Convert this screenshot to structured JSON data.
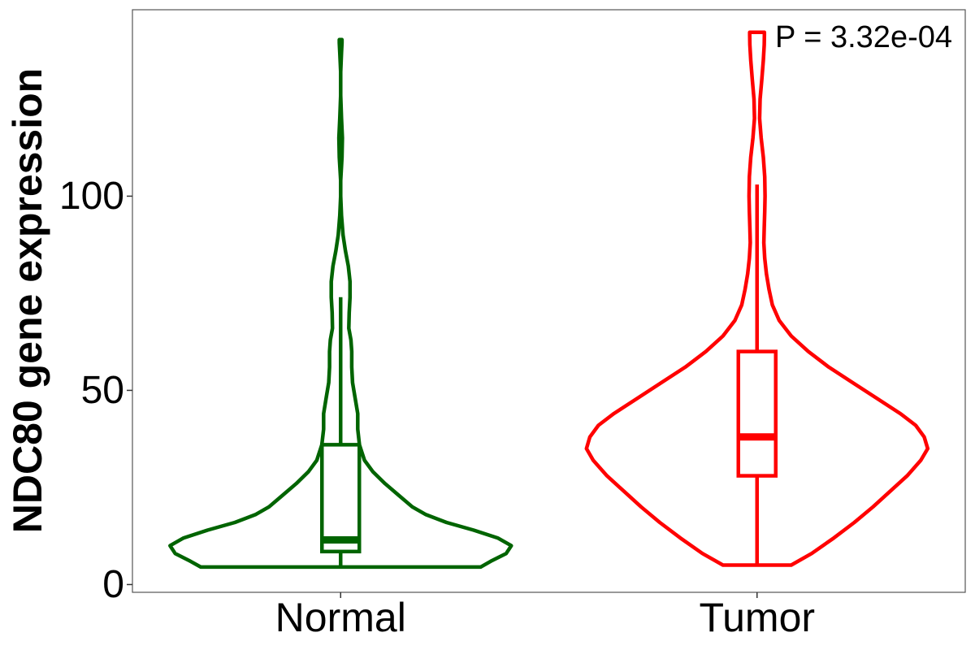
{
  "chart_data": {
    "type": "violin",
    "title": "",
    "xlabel": "",
    "ylabel": "NDC80 gene expression",
    "ylim": [
      -2,
      148
    ],
    "yticks": [
      0,
      50,
      100
    ],
    "categories": [
      "Normal",
      "Tumor"
    ],
    "annotation": "P = 3.32e-04",
    "grid": false,
    "series": [
      {
        "category": "Normal",
        "color": "#006400",
        "box": {
          "whisker_low": 4.5,
          "q1": 8.5,
          "median": 11.5,
          "q3": 36,
          "whisker_high": 74
        },
        "density_profile": [
          [
            4.5,
            0.82
          ],
          [
            6,
            0.88
          ],
          [
            8,
            0.97
          ],
          [
            10,
            1.0
          ],
          [
            12,
            0.92
          ],
          [
            14,
            0.78
          ],
          [
            16,
            0.62
          ],
          [
            18,
            0.5
          ],
          [
            20,
            0.42
          ],
          [
            23,
            0.34
          ],
          [
            26,
            0.26
          ],
          [
            29,
            0.19
          ],
          [
            32,
            0.14
          ],
          [
            36,
            0.11
          ],
          [
            40,
            0.1
          ],
          [
            44,
            0.1
          ],
          [
            48,
            0.085
          ],
          [
            52,
            0.07
          ],
          [
            56,
            0.065
          ],
          [
            60,
            0.065
          ],
          [
            63,
            0.06
          ],
          [
            66,
            0.048
          ],
          [
            70,
            0.05
          ],
          [
            74,
            0.055
          ],
          [
            78,
            0.055
          ],
          [
            82,
            0.045
          ],
          [
            86,
            0.028
          ],
          [
            90,
            0.014
          ],
          [
            95,
            0.005
          ],
          [
            100,
            0.0
          ],
          [
            104,
            0.0
          ],
          [
            110,
            0.008
          ],
          [
            115,
            0.01
          ],
          [
            120,
            0.005
          ],
          [
            126,
            0.0
          ],
          [
            132,
            0.0
          ],
          [
            137,
            0.005
          ],
          [
            139.5,
            0.008
          ],
          [
            140.3,
            0.008
          ]
        ]
      },
      {
        "category": "Tumor",
        "color": "#ff0000",
        "box": {
          "whisker_low": 5,
          "q1": 28,
          "median": 38,
          "q3": 60,
          "whisker_high": 103
        },
        "density_profile": [
          [
            5,
            0.2
          ],
          [
            8,
            0.32
          ],
          [
            12,
            0.45
          ],
          [
            16,
            0.57
          ],
          [
            20,
            0.68
          ],
          [
            24,
            0.78
          ],
          [
            28,
            0.88
          ],
          [
            32,
            0.96
          ],
          [
            35,
            1.0
          ],
          [
            38,
            0.98
          ],
          [
            41,
            0.93
          ],
          [
            44,
            0.84
          ],
          [
            48,
            0.7
          ],
          [
            52,
            0.56
          ],
          [
            56,
            0.42
          ],
          [
            60,
            0.3
          ],
          [
            64,
            0.2
          ],
          [
            68,
            0.13
          ],
          [
            72,
            0.09
          ],
          [
            76,
            0.07
          ],
          [
            80,
            0.055
          ],
          [
            84,
            0.045
          ],
          [
            88,
            0.04
          ],
          [
            92,
            0.042
          ],
          [
            96,
            0.045
          ],
          [
            100,
            0.047
          ],
          [
            105,
            0.045
          ],
          [
            110,
            0.037
          ],
          [
            115,
            0.024
          ],
          [
            120,
            0.015
          ],
          [
            125,
            0.018
          ],
          [
            130,
            0.028
          ],
          [
            135,
            0.037
          ],
          [
            139,
            0.042
          ],
          [
            141.5,
            0.043
          ],
          [
            142.2,
            0.043
          ]
        ]
      }
    ]
  }
}
